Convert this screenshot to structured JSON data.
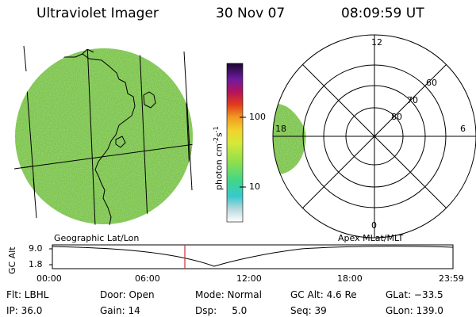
{
  "header": {
    "instrument": "Ultraviolet Imager",
    "date": "30 Nov 07",
    "time": "08:09:59 UT"
  },
  "colorbar": {
    "unit_prefix": "photon cm",
    "unit_exp1": "-2",
    "unit_mid": "s",
    "unit_exp2": "-1",
    "ticks": [
      "100",
      "10"
    ]
  },
  "polar_plot": {
    "mlt_labels": {
      "top": "12",
      "right": "6",
      "left": "18",
      "bottom": "0"
    },
    "mlat_labels": [
      "60",
      "70",
      "80"
    ]
  },
  "timeline": {
    "ylabel": "GC Alt",
    "left_title": "Geographic Lat/Lon",
    "right_title": "Apex MLat/MLT",
    "y_ticks": [
      "9.0",
      "1.8"
    ],
    "x_ticks": [
      "00:00",
      "06:00",
      "12:00",
      "18:00",
      "23:59"
    ],
    "current_marker": "08:10",
    "marker_color": "#c83232"
  },
  "status": {
    "flt": "Flt: LBHL",
    "ip": "IP: 36.0",
    "door": "Door: Open",
    "gain": "Gain: 14",
    "mode": "Mode: Normal",
    "dsp": "Dsp:     5.0",
    "gcalt": "GC Alt: 4.6 Re",
    "seq": "Seq: 39",
    "glat": "GLat: −33.5",
    "glon": "GLon: 139.0"
  },
  "colors": {
    "aurora_green": "#7dc24a",
    "grid": "#000000"
  }
}
